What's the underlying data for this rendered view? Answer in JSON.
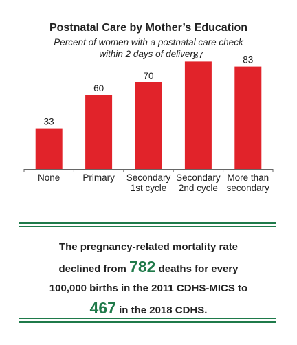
{
  "chart_data": {
    "type": "bar",
    "title": "Postnatal Care by Mother’s Education",
    "subtitle_line1": "Percent of women with a postnatal care check",
    "subtitle_line2": "within 2 days of delivery",
    "categories": [
      [
        "None"
      ],
      [
        "Primary"
      ],
      [
        "Secondary",
        "1st cycle"
      ],
      [
        "Secondary",
        "2nd cycle"
      ],
      [
        "More than",
        "secondary"
      ]
    ],
    "values": [
      33,
      60,
      70,
      87,
      83
    ],
    "ylim": [
      0,
      100
    ],
    "bar_color": "#e1232a",
    "axis_color": "#666666"
  },
  "callout": {
    "line1": "The pregnancy-related mortality rate",
    "line2_pre": "declined from ",
    "num1": "782",
    "line2_post": " deaths for every",
    "line3": "100,000 births in the 2011 CDHS-MICS to",
    "num2": "467",
    "line4_post": " in the 2018 CDHS.",
    "accent_color": "#1f7a4a"
  }
}
